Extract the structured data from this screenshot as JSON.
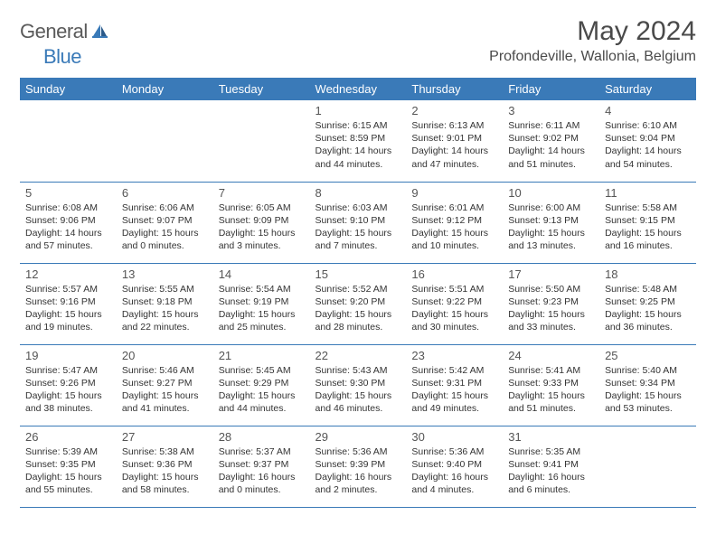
{
  "brand": {
    "general": "General",
    "blue": "Blue"
  },
  "title": "May 2024",
  "location": "Profondeville, Wallonia, Belgium",
  "colors": {
    "accent": "#3a7ab8",
    "text": "#333333",
    "heading": "#4a4a4a"
  },
  "dayNames": [
    "Sunday",
    "Monday",
    "Tuesday",
    "Wednesday",
    "Thursday",
    "Friday",
    "Saturday"
  ],
  "weeks": [
    [
      null,
      null,
      null,
      {
        "n": "1",
        "sr": "6:15 AM",
        "ss": "8:59 PM",
        "dl": "14 hours and 44 minutes."
      },
      {
        "n": "2",
        "sr": "6:13 AM",
        "ss": "9:01 PM",
        "dl": "14 hours and 47 minutes."
      },
      {
        "n": "3",
        "sr": "6:11 AM",
        "ss": "9:02 PM",
        "dl": "14 hours and 51 minutes."
      },
      {
        "n": "4",
        "sr": "6:10 AM",
        "ss": "9:04 PM",
        "dl": "14 hours and 54 minutes."
      }
    ],
    [
      {
        "n": "5",
        "sr": "6:08 AM",
        "ss": "9:06 PM",
        "dl": "14 hours and 57 minutes."
      },
      {
        "n": "6",
        "sr": "6:06 AM",
        "ss": "9:07 PM",
        "dl": "15 hours and 0 minutes."
      },
      {
        "n": "7",
        "sr": "6:05 AM",
        "ss": "9:09 PM",
        "dl": "15 hours and 3 minutes."
      },
      {
        "n": "8",
        "sr": "6:03 AM",
        "ss": "9:10 PM",
        "dl": "15 hours and 7 minutes."
      },
      {
        "n": "9",
        "sr": "6:01 AM",
        "ss": "9:12 PM",
        "dl": "15 hours and 10 minutes."
      },
      {
        "n": "10",
        "sr": "6:00 AM",
        "ss": "9:13 PM",
        "dl": "15 hours and 13 minutes."
      },
      {
        "n": "11",
        "sr": "5:58 AM",
        "ss": "9:15 PM",
        "dl": "15 hours and 16 minutes."
      }
    ],
    [
      {
        "n": "12",
        "sr": "5:57 AM",
        "ss": "9:16 PM",
        "dl": "15 hours and 19 minutes."
      },
      {
        "n": "13",
        "sr": "5:55 AM",
        "ss": "9:18 PM",
        "dl": "15 hours and 22 minutes."
      },
      {
        "n": "14",
        "sr": "5:54 AM",
        "ss": "9:19 PM",
        "dl": "15 hours and 25 minutes."
      },
      {
        "n": "15",
        "sr": "5:52 AM",
        "ss": "9:20 PM",
        "dl": "15 hours and 28 minutes."
      },
      {
        "n": "16",
        "sr": "5:51 AM",
        "ss": "9:22 PM",
        "dl": "15 hours and 30 minutes."
      },
      {
        "n": "17",
        "sr": "5:50 AM",
        "ss": "9:23 PM",
        "dl": "15 hours and 33 minutes."
      },
      {
        "n": "18",
        "sr": "5:48 AM",
        "ss": "9:25 PM",
        "dl": "15 hours and 36 minutes."
      }
    ],
    [
      {
        "n": "19",
        "sr": "5:47 AM",
        "ss": "9:26 PM",
        "dl": "15 hours and 38 minutes."
      },
      {
        "n": "20",
        "sr": "5:46 AM",
        "ss": "9:27 PM",
        "dl": "15 hours and 41 minutes."
      },
      {
        "n": "21",
        "sr": "5:45 AM",
        "ss": "9:29 PM",
        "dl": "15 hours and 44 minutes."
      },
      {
        "n": "22",
        "sr": "5:43 AM",
        "ss": "9:30 PM",
        "dl": "15 hours and 46 minutes."
      },
      {
        "n": "23",
        "sr": "5:42 AM",
        "ss": "9:31 PM",
        "dl": "15 hours and 49 minutes."
      },
      {
        "n": "24",
        "sr": "5:41 AM",
        "ss": "9:33 PM",
        "dl": "15 hours and 51 minutes."
      },
      {
        "n": "25",
        "sr": "5:40 AM",
        "ss": "9:34 PM",
        "dl": "15 hours and 53 minutes."
      }
    ],
    [
      {
        "n": "26",
        "sr": "5:39 AM",
        "ss": "9:35 PM",
        "dl": "15 hours and 55 minutes."
      },
      {
        "n": "27",
        "sr": "5:38 AM",
        "ss": "9:36 PM",
        "dl": "15 hours and 58 minutes."
      },
      {
        "n": "28",
        "sr": "5:37 AM",
        "ss": "9:37 PM",
        "dl": "16 hours and 0 minutes."
      },
      {
        "n": "29",
        "sr": "5:36 AM",
        "ss": "9:39 PM",
        "dl": "16 hours and 2 minutes."
      },
      {
        "n": "30",
        "sr": "5:36 AM",
        "ss": "9:40 PM",
        "dl": "16 hours and 4 minutes."
      },
      {
        "n": "31",
        "sr": "5:35 AM",
        "ss": "9:41 PM",
        "dl": "16 hours and 6 minutes."
      },
      null
    ]
  ],
  "labels": {
    "sunrise": "Sunrise:",
    "sunset": "Sunset:",
    "daylight": "Daylight:"
  }
}
